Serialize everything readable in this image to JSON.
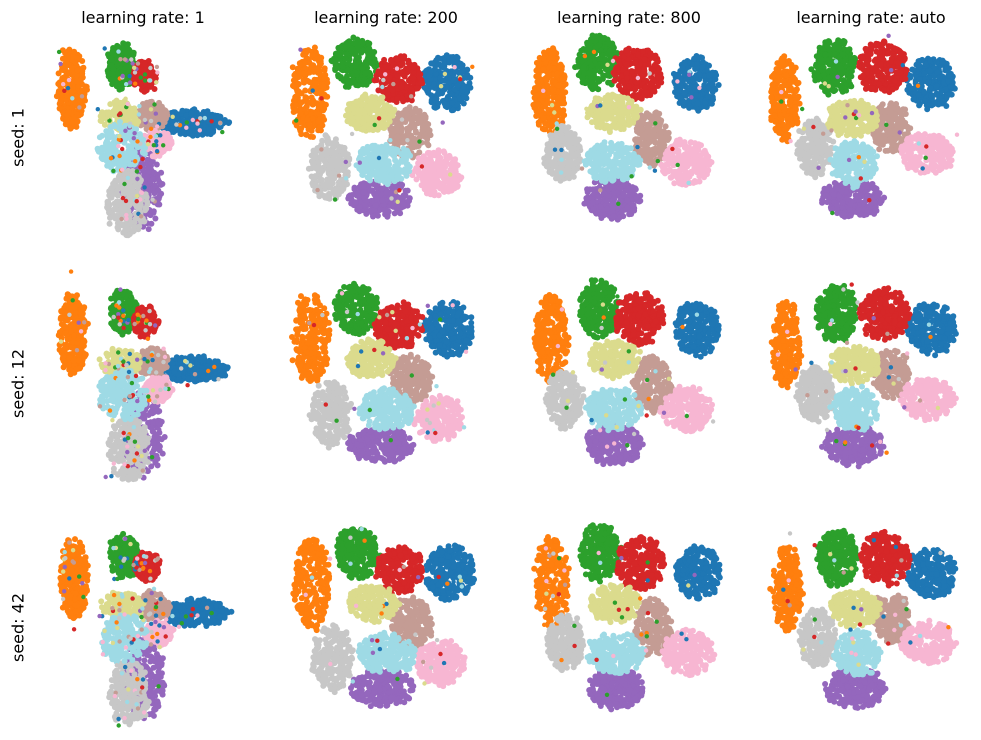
{
  "chart_data": {
    "type": "scatter",
    "columns": [
      "learning rate: 1",
      "learning rate: 200",
      "learning rate: 800",
      "learning rate: auto"
    ],
    "rows": [
      "seed: 1",
      "seed: 12",
      "seed: 42"
    ],
    "cluster_colors": [
      "#1f77b4",
      "#ff7f0e",
      "#2ca02c",
      "#d62728",
      "#9467bd",
      "#c49c94",
      "#f7b6d2",
      "#c7c7c7",
      "#dbdb8d",
      "#9edae5"
    ],
    "axes": "off",
    "grid": false,
    "legend": "none"
  }
}
